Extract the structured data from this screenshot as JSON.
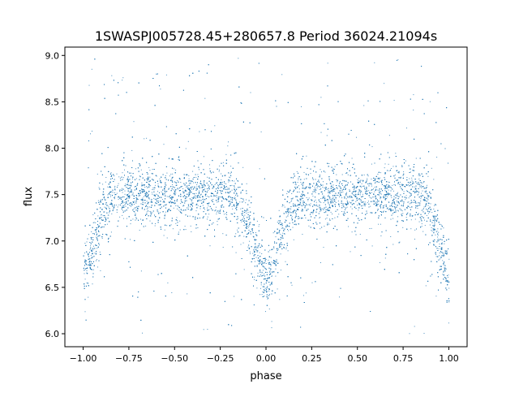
{
  "chart_data": {
    "type": "scatter",
    "title": "1SWASPJ005728.45+280657.8 Period 36024.21094s",
    "xlabel": "phase",
    "ylabel": "flux",
    "xlim": [
      -1.1,
      1.1
    ],
    "ylim": [
      5.86,
      9.09
    ],
    "xticks": [
      -1.0,
      -0.75,
      -0.5,
      -0.25,
      0.0,
      0.25,
      0.5,
      0.75,
      1.0
    ],
    "xtick_labels": [
      "−1.00",
      "−0.75",
      "−0.50",
      "−0.25",
      "0.00",
      "0.25",
      "0.50",
      "0.75",
      "1.00"
    ],
    "yticks": [
      6.0,
      6.5,
      7.0,
      7.5,
      8.0,
      8.5,
      9.0
    ],
    "ytick_labels": [
      "6.0",
      "6.5",
      "7.0",
      "7.5",
      "8.0",
      "8.5",
      "9.0"
    ],
    "grid": false,
    "marker_color": "#1f77b4",
    "phase_range": [
      -1.0,
      1.0
    ],
    "flux_range": [
      6.0,
      9.0
    ],
    "median_flux_profile": {
      "phase": [
        -1.0,
        -0.95,
        -0.9,
        -0.85,
        -0.8,
        -0.5,
        -0.2,
        -0.15,
        -0.1,
        -0.05,
        0.0,
        0.05,
        0.1,
        0.15,
        0.2,
        0.5,
        0.8,
        0.85,
        0.9,
        0.95,
        1.0
      ],
      "flux": [
        6.6,
        6.9,
        7.3,
        7.48,
        7.5,
        7.5,
        7.5,
        7.45,
        7.2,
        6.85,
        6.55,
        6.85,
        7.2,
        7.45,
        7.5,
        7.5,
        7.5,
        7.48,
        7.3,
        6.9,
        6.6
      ]
    },
    "typical_scatter": 0.15
  }
}
